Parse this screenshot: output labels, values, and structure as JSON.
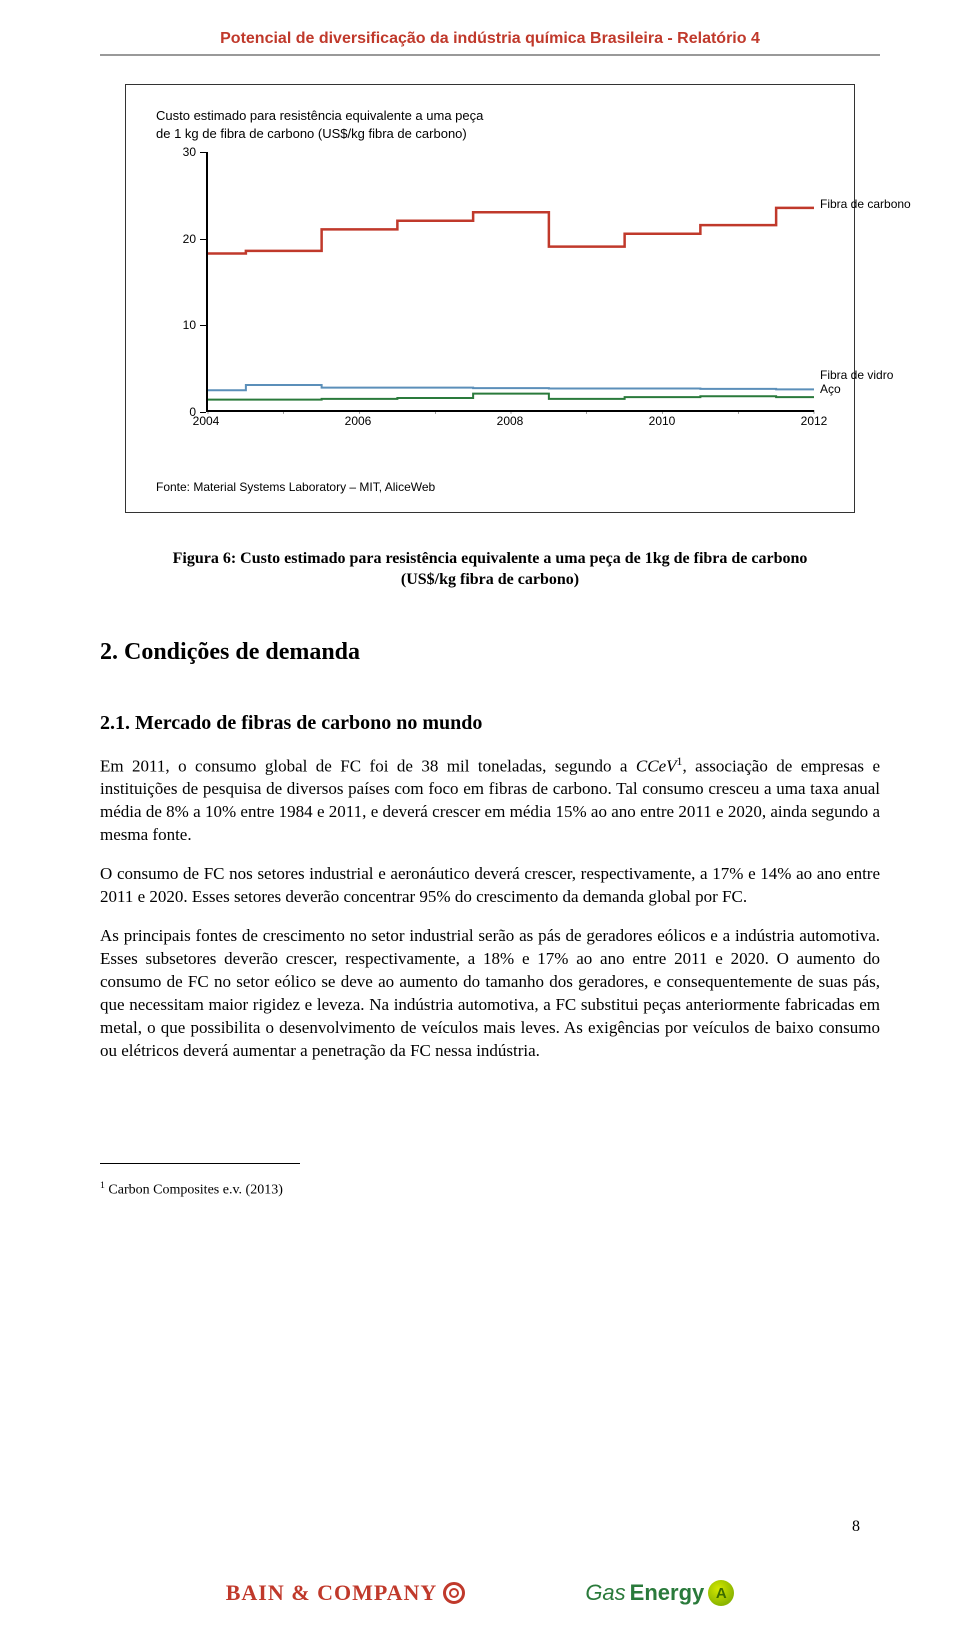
{
  "header_title": "Potencial de diversificação da indústria química Brasileira - Relatório 4",
  "chart": {
    "type": "line",
    "title_line1": "Custo estimado para resistência equivalente a uma peça",
    "title_line2": "de 1 kg de fibra de carbono (US$/kg fibra de carbono)",
    "source": "Fonte: Material Systems Laboratory – MIT, AliceWeb",
    "y_ticks": [
      0,
      10,
      20,
      30
    ],
    "ylim": [
      0,
      30
    ],
    "x_tick_labels": [
      "2004",
      "2006",
      "2008",
      "2010",
      "2012"
    ],
    "x_count": 9,
    "series": [
      {
        "name": "Fibra de carbono",
        "color": "#c0392b",
        "stroke_width": 2.5,
        "values": [
          18.2,
          18.5,
          21,
          22,
          23,
          19,
          20.5,
          21.5,
          23.5
        ]
      },
      {
        "name": "Fibra de vidro",
        "color": "#5b8fb9",
        "stroke_width": 2,
        "values": [
          2.3,
          2.9,
          2.6,
          2.6,
          2.55,
          2.5,
          2.5,
          2.45,
          2.4
        ]
      },
      {
        "name": "Aço",
        "color": "#2a7a3b",
        "stroke_width": 2,
        "values": [
          1.2,
          1.2,
          1.3,
          1.4,
          1.9,
          1.3,
          1.5,
          1.6,
          1.5
        ]
      }
    ],
    "legend_positions": [
      {
        "name": "Fibra de carbono",
        "topPct": 20,
        "rightPx": -6
      },
      {
        "name": "Fibra de vidro",
        "topPct": 86.5,
        "rightPx": -6
      },
      {
        "name": "Aço",
        "topPct": 92,
        "rightPx": -6
      }
    ],
    "background_color": "#ffffff",
    "axis_color": "#000000",
    "label_fontsize": 12
  },
  "figure_caption": "Figura 6: Custo estimado para resistência equivalente a uma peça de 1kg de fibra de carbono (US$/kg fibra de carbono)",
  "section_h2": "2.   Condições de demanda",
  "section_h3": "2.1.    Mercado de fibras de carbono no mundo",
  "para1_pre": "Em 2011, o consumo global de FC foi de 38 mil toneladas, segundo a ",
  "para1_it": "CCeV",
  "para1_sup": "1",
  "para1_post": ", associação de empresas e instituições de pesquisa de diversos países com foco em fibras de carbono. Tal consumo cresceu a uma taxa anual média de 8% a 10% entre 1984 e 2011, e deverá crescer em média 15% ao ano entre 2011 e 2020, ainda segundo a mesma fonte.",
  "para2": "O consumo de FC nos setores industrial e aeronáutico deverá crescer, respectivamente, a 17% e 14% ao ano entre 2011 e 2020. Esses setores deverão concentrar 95% do crescimento da demanda global por FC.",
  "para3": "As principais fontes de crescimento no setor industrial serão as pás de geradores eólicos e a indústria automotiva. Esses subsetores deverão crescer, respectivamente, a 18% e 17% ao ano entre 2011 e 2020. O aumento do consumo de FC no setor eólico se deve ao aumento do tamanho dos geradores, e consequentemente de suas pás, que necessitam maior rigidez e leveza. Na indústria automotiva, a FC substitui peças anteriormente fabricadas em metal, o que possibilita o desenvolvimento de veículos mais leves. As exigências por veículos de baixo consumo ou elétricos deverá aumentar a penetração da FC nessa indústria.",
  "footnote_marker": "1",
  "footnote_text": " Carbon Composites e.v. (2013)",
  "page_number": "8",
  "footer": {
    "bain": "BAIN & COMPANY",
    "gas_a": "Gas",
    "gas_b": "Energy"
  }
}
